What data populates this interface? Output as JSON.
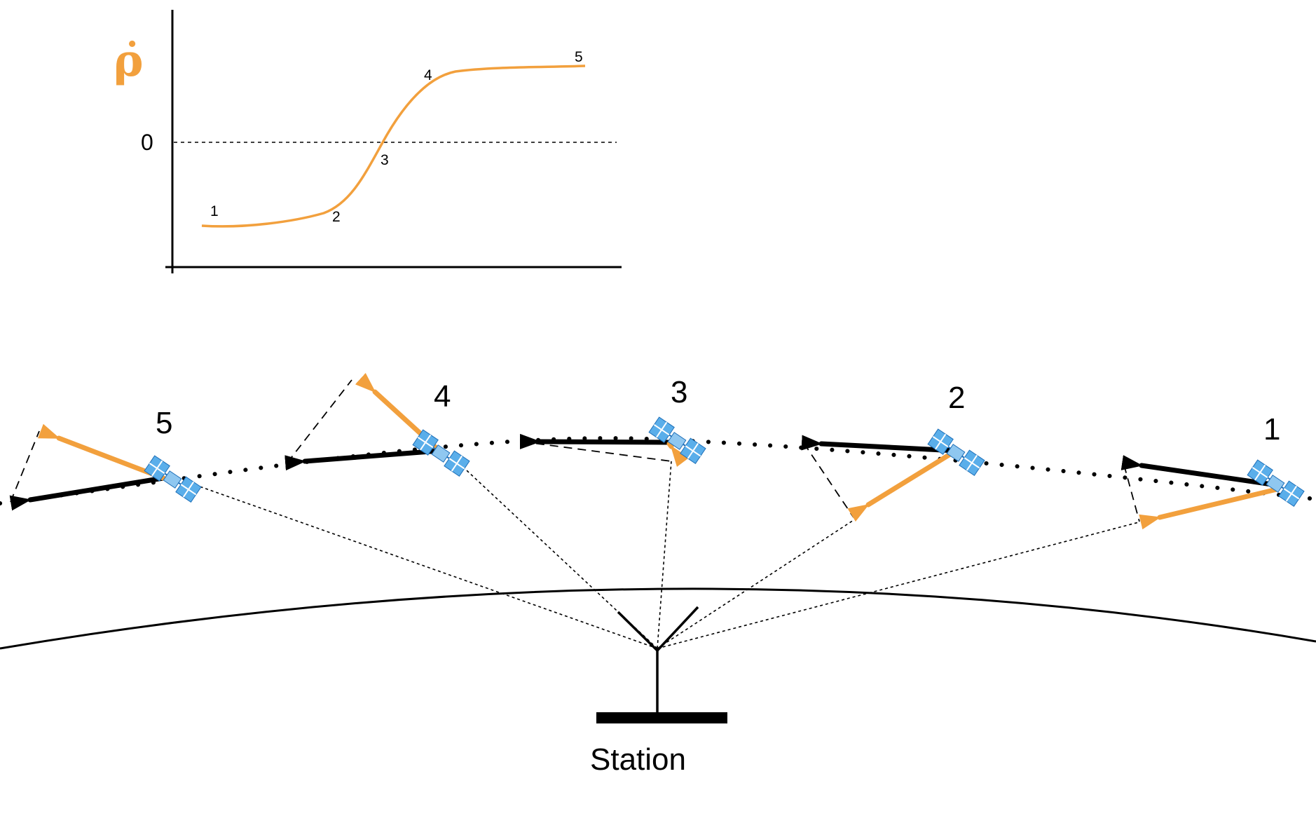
{
  "colors": {
    "velocity": "#000000",
    "range_rate": "#F2A03D",
    "satellite_panel": "#5AAEEA",
    "satellite_panel_edge": "#1E6FB8"
  },
  "plot": {
    "y_label": "ρ̇",
    "zero_label": "0",
    "points": [
      {
        "label": "1",
        "value": -0.66
      },
      {
        "label": "2",
        "value": -0.56
      },
      {
        "label": "3",
        "value": 0.0
      },
      {
        "label": "4",
        "value": 0.62
      },
      {
        "label": "5",
        "value": 0.62
      }
    ]
  },
  "satellites": [
    {
      "label": "1"
    },
    {
      "label": "2"
    },
    {
      "label": "3"
    },
    {
      "label": "4"
    },
    {
      "label": "5"
    }
  ],
  "station": {
    "label": "Station"
  },
  "icons": {
    "satellite": "satellite-icon",
    "antenna": "antenna-icon"
  }
}
